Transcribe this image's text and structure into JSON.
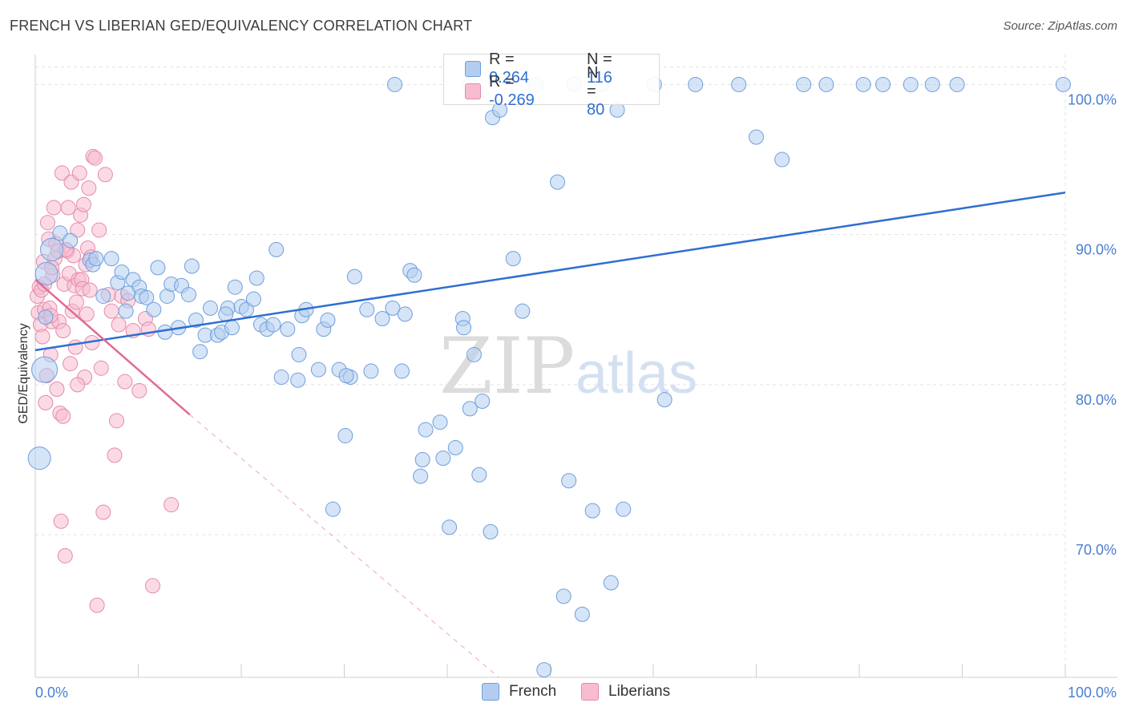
{
  "title": "FRENCH VS LIBERIAN GED/EQUIVALENCY CORRELATION CHART",
  "source": "Source: ZipAtlas.com",
  "watermark": {
    "zip": "ZIP",
    "atlas": "atlas"
  },
  "legend_top": {
    "rows": [
      {
        "r_label": "R =",
        "r_value": "0.264",
        "n_label": "N =",
        "n_value": "116"
      },
      {
        "r_label": "R =",
        "r_value": "-0.269",
        "n_label": "N =",
        "n_value": "80"
      }
    ]
  },
  "legend_bottom": [
    "French",
    "Liberians"
  ],
  "colors": {
    "french_fill": "#b3cdf0",
    "french_stroke": "#6f9fdc",
    "french_line": "#2e6fd0",
    "liberian_fill": "#f7bcd0",
    "liberian_stroke": "#e48bab",
    "liberian_line": "#e06b98",
    "grid": "#e3e3e3",
    "tick_label": "#4a7fd0"
  },
  "chart_data": {
    "type": "scatter",
    "title": "FRENCH VS LIBERIAN GED/EQUIVALENCY CORRELATION CHART",
    "xlabel": "",
    "ylabel": "GED/Equivalency",
    "xlim": [
      0,
      100
    ],
    "ylim": [
      60.5,
      102
    ],
    "x_tick_labels": [
      "0.0%",
      "100.0%"
    ],
    "y_ticks": [
      70,
      80,
      90,
      100
    ],
    "y_tick_labels": [
      "70.0%",
      "80.0%",
      "90.0%",
      "100.0%"
    ],
    "grid": true,
    "legend_position": "bottom",
    "series": [
      {
        "name": "French",
        "R": 0.264,
        "N": 116,
        "trend": {
          "x0": 0,
          "y0": 82.3,
          "x1": 100,
          "y1": 92.8
        },
        "points": [
          [
            0.4,
            75.1
          ],
          [
            0.9,
            81.0
          ],
          [
            1.0,
            84.5
          ],
          [
            1.1,
            87.4
          ],
          [
            1.6,
            89.0
          ],
          [
            2.4,
            90.1
          ],
          [
            3.4,
            89.6
          ],
          [
            5.3,
            88.3
          ],
          [
            5.6,
            88.0
          ],
          [
            5.9,
            88.4
          ],
          [
            7.4,
            88.4
          ],
          [
            6.6,
            85.9
          ],
          [
            8.0,
            86.8
          ],
          [
            8.4,
            87.5
          ],
          [
            8.8,
            84.9
          ],
          [
            9.5,
            87.0
          ],
          [
            10.1,
            86.5
          ],
          [
            10.3,
            85.9
          ],
          [
            10.8,
            85.8
          ],
          [
            11.5,
            85.0
          ],
          [
            11.9,
            87.8
          ],
          [
            12.8,
            85.9
          ],
          [
            13.2,
            86.7
          ],
          [
            13.9,
            83.8
          ],
          [
            14.2,
            86.6
          ],
          [
            14.9,
            86.0
          ],
          [
            15.6,
            84.3
          ],
          [
            16.0,
            82.2
          ],
          [
            16.5,
            83.3
          ],
          [
            17.0,
            85.1
          ],
          [
            17.7,
            83.3
          ],
          [
            18.1,
            83.5
          ],
          [
            18.7,
            85.1
          ],
          [
            19.1,
            83.8
          ],
          [
            19.4,
            86.5
          ],
          [
            20.0,
            85.2
          ],
          [
            20.5,
            85.0
          ],
          [
            21.2,
            85.7
          ],
          [
            21.5,
            87.1
          ],
          [
            21.9,
            84.0
          ],
          [
            22.5,
            83.7
          ],
          [
            23.1,
            84.0
          ],
          [
            23.4,
            89.0
          ],
          [
            23.9,
            80.5
          ],
          [
            24.5,
            83.7
          ],
          [
            25.5,
            80.3
          ],
          [
            25.9,
            84.6
          ],
          [
            26.3,
            85.0
          ],
          [
            27.5,
            81.0
          ],
          [
            28.0,
            83.7
          ],
          [
            28.4,
            84.3
          ],
          [
            29.5,
            81.0
          ],
          [
            30.1,
            76.6
          ],
          [
            30.6,
            80.5
          ],
          [
            31.0,
            87.2
          ],
          [
            32.2,
            85.0
          ],
          [
            32.6,
            80.9
          ],
          [
            33.7,
            84.4
          ],
          [
            34.7,
            85.1
          ],
          [
            34.9,
            100.0
          ],
          [
            35.6,
            80.9
          ],
          [
            35.9,
            84.7
          ],
          [
            36.4,
            87.6
          ],
          [
            36.8,
            87.3
          ],
          [
            37.6,
            75.0
          ],
          [
            37.9,
            77.0
          ],
          [
            39.3,
            77.5
          ],
          [
            39.6,
            75.1
          ],
          [
            40.8,
            75.8
          ],
          [
            41.5,
            84.4
          ],
          [
            41.6,
            83.8
          ],
          [
            42.1,
            100.0
          ],
          [
            42.2,
            78.4
          ],
          [
            42.6,
            82.0
          ],
          [
            43.1,
            74.0
          ],
          [
            43.4,
            78.9
          ],
          [
            44.2,
            70.2
          ],
          [
            44.4,
            97.8
          ],
          [
            45.1,
            98.3
          ],
          [
            46.4,
            88.4
          ],
          [
            47.3,
            84.9
          ],
          [
            48.6,
            100.0
          ],
          [
            49.4,
            61.0
          ],
          [
            50.7,
            93.5
          ],
          [
            51.3,
            65.9
          ],
          [
            51.8,
            73.6
          ],
          [
            52.3,
            100.0
          ],
          [
            53.1,
            64.7
          ],
          [
            54.1,
            71.6
          ],
          [
            55.0,
            100.0
          ],
          [
            55.9,
            66.8
          ],
          [
            56.5,
            98.3
          ],
          [
            57.1,
            71.7
          ],
          [
            60.1,
            100.0
          ],
          [
            61.1,
            79.0
          ],
          [
            64.1,
            100.0
          ],
          [
            68.3,
            100.0
          ],
          [
            70.0,
            96.5
          ],
          [
            72.5,
            95.0
          ],
          [
            74.6,
            100.0
          ],
          [
            76.8,
            100.0
          ],
          [
            80.4,
            100.0
          ],
          [
            82.3,
            100.0
          ],
          [
            85.0,
            100.0
          ],
          [
            87.1,
            100.0
          ],
          [
            89.5,
            100.0
          ],
          [
            99.8,
            100.0
          ],
          [
            28.9,
            71.7
          ],
          [
            37.4,
            73.9
          ],
          [
            40.2,
            70.5
          ],
          [
            30.2,
            80.6
          ],
          [
            25.6,
            82.0
          ],
          [
            18.5,
            84.7
          ],
          [
            15.2,
            87.9
          ],
          [
            12.6,
            83.5
          ],
          [
            9.0,
            86.1
          ]
        ]
      },
      {
        "name": "Liberians",
        "R": -0.269,
        "N": 80,
        "trend": {
          "x0": 0,
          "y0": 87.0,
          "x1": 15,
          "y1": 78.0,
          "dash_to_x": 45,
          "dash_to_y": 60.5
        },
        "points": [
          [
            0.2,
            85.9
          ],
          [
            0.3,
            84.8
          ],
          [
            0.4,
            86.5
          ],
          [
            0.5,
            84.0
          ],
          [
            0.6,
            86.3
          ],
          [
            0.7,
            83.2
          ],
          [
            0.8,
            88.2
          ],
          [
            0.9,
            85.0
          ],
          [
            1.0,
            78.8
          ],
          [
            1.1,
            80.6
          ],
          [
            1.2,
            90.8
          ],
          [
            1.3,
            89.7
          ],
          [
            1.4,
            85.1
          ],
          [
            1.5,
            82.0
          ],
          [
            1.6,
            84.2
          ],
          [
            1.7,
            87.3
          ],
          [
            1.8,
            91.8
          ],
          [
            1.9,
            88.4
          ],
          [
            2.0,
            89.4
          ],
          [
            2.1,
            79.7
          ],
          [
            2.3,
            84.2
          ],
          [
            2.4,
            78.1
          ],
          [
            2.5,
            70.9
          ],
          [
            2.6,
            94.1
          ],
          [
            2.7,
            77.9
          ],
          [
            2.8,
            86.7
          ],
          [
            2.9,
            68.6
          ],
          [
            3.1,
            88.9
          ],
          [
            3.2,
            91.8
          ],
          [
            3.3,
            87.4
          ],
          [
            3.4,
            81.4
          ],
          [
            3.5,
            93.5
          ],
          [
            3.6,
            84.9
          ],
          [
            3.7,
            88.6
          ],
          [
            3.8,
            86.6
          ],
          [
            3.9,
            82.5
          ],
          [
            4.0,
            85.5
          ],
          [
            4.1,
            90.3
          ],
          [
            4.2,
            87.0
          ],
          [
            4.3,
            94.1
          ],
          [
            4.4,
            91.3
          ],
          [
            4.5,
            87.0
          ],
          [
            4.6,
            86.4
          ],
          [
            4.7,
            92.0
          ],
          [
            4.8,
            80.5
          ],
          [
            4.9,
            88.0
          ],
          [
            5.0,
            84.7
          ],
          [
            5.1,
            89.1
          ],
          [
            5.2,
            93.1
          ],
          [
            5.3,
            86.3
          ],
          [
            5.4,
            88.5
          ],
          [
            5.6,
            95.2
          ],
          [
            5.8,
            95.1
          ],
          [
            6.0,
            65.3
          ],
          [
            6.2,
            90.3
          ],
          [
            6.4,
            81.1
          ],
          [
            6.6,
            71.5
          ],
          [
            6.8,
            94.0
          ],
          [
            7.1,
            86.0
          ],
          [
            7.4,
            84.9
          ],
          [
            7.7,
            75.3
          ],
          [
            7.9,
            77.6
          ],
          [
            8.1,
            84.0
          ],
          [
            8.4,
            85.9
          ],
          [
            8.7,
            80.2
          ],
          [
            9.0,
            85.6
          ],
          [
            9.5,
            83.6
          ],
          [
            10.1,
            79.6
          ],
          [
            10.7,
            84.4
          ],
          [
            11.0,
            83.7
          ],
          [
            11.4,
            66.6
          ],
          [
            13.2,
            72.0
          ],
          [
            1.6,
            87.8
          ],
          [
            2.2,
            88.9
          ],
          [
            1.5,
            84.6
          ],
          [
            0.9,
            86.7
          ],
          [
            3.0,
            89.0
          ],
          [
            4.1,
            80.0
          ],
          [
            5.5,
            82.8
          ],
          [
            2.7,
            83.6
          ]
        ]
      }
    ]
  }
}
